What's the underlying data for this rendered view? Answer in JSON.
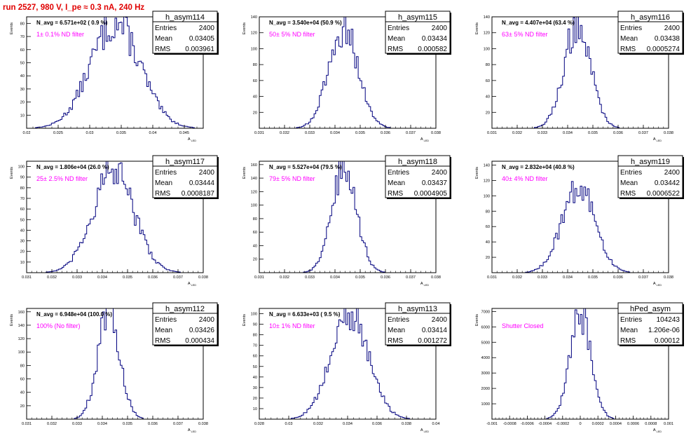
{
  "run_title": "run 2527,   980 V, I_pe ≈ 0.3 nA, 240 Hz",
  "colors": {
    "hist_line": "#00007f",
    "filter_label": "#ff00ff",
    "run_title": "#e00000",
    "frame": "#000000"
  },
  "chart_data": [
    {
      "type": "histogram",
      "name": "h_asym114",
      "ylabel": "Events",
      "xlabel": "A_LED",
      "xlim": [
        0.02,
        0.048
      ],
      "ylim": [
        0,
        85
      ],
      "xticks": [
        "0.02",
        "0.025",
        "0.03",
        "0.035",
        "0.04",
        "0.045"
      ],
      "xtick_values": [
        0.02,
        0.025,
        0.03,
        0.035,
        0.04,
        0.045
      ],
      "yticks": [
        10,
        20,
        30,
        40,
        50,
        60,
        70,
        80
      ],
      "stats": {
        "Entries": "2400",
        "Mean": "0.03405",
        "RMS": "0.003961"
      },
      "n_avg": "N_avg = 6.571e+02 ( 0.9 %)",
      "filter": "1± 0.1% ND filter",
      "mean": 0.03405,
      "rms": 0.003961,
      "peak": 80
    },
    {
      "type": "histogram",
      "name": "h_asym115",
      "ylabel": "Events",
      "xlabel": "A_LED",
      "xlim": [
        0.031,
        0.038
      ],
      "ylim": [
        0,
        140
      ],
      "xticks": [
        "0.031",
        "0.032",
        "0.033",
        "0.034",
        "0.035",
        "0.036",
        "0.037",
        "0.038"
      ],
      "xtick_values": [
        0.031,
        0.032,
        0.033,
        0.034,
        0.035,
        0.036,
        0.037,
        0.038
      ],
      "yticks": [
        20,
        40,
        60,
        80,
        100,
        120,
        140
      ],
      "stats": {
        "Entries": "2400",
        "Mean": "0.03434",
        "RMS": "0.000582"
      },
      "n_avg": "N_avg = 3.540e+04 (50.9 %)",
      "filter": "50± 5% ND filter",
      "mean": 0.03434,
      "rms": 0.000582,
      "peak": 125
    },
    {
      "type": "histogram",
      "name": "h_asym116",
      "ylabel": "Events",
      "xlabel": "A_LED",
      "xlim": [
        0.031,
        0.038
      ],
      "ylim": [
        0,
        140
      ],
      "xticks": [
        "0.031",
        "0.032",
        "0.033",
        "0.034",
        "0.035",
        "0.036",
        "0.037",
        "0.038"
      ],
      "xtick_values": [
        0.031,
        0.032,
        0.033,
        0.034,
        0.035,
        0.036,
        0.037,
        0.038
      ],
      "yticks": [
        20,
        40,
        60,
        80,
        100,
        120,
        140
      ],
      "stats": {
        "Entries": "2400",
        "Mean": "0.03438",
        "RMS": "0.0005274"
      },
      "n_avg": "N_avg = 4.407e+04 (63.4 %)",
      "filter": "63± 5% ND filter",
      "mean": 0.03438,
      "rms": 0.0005274,
      "peak": 130
    },
    {
      "type": "histogram",
      "name": "h_asym117",
      "ylabel": "Events",
      "xlabel": "A_LED",
      "xlim": [
        0.031,
        0.038
      ],
      "ylim": [
        0,
        105
      ],
      "xticks": [
        "0.031",
        "0.032",
        "0.033",
        "0.034",
        "0.035",
        "0.036",
        "0.037",
        "0.038"
      ],
      "xtick_values": [
        0.031,
        0.032,
        0.033,
        0.034,
        0.035,
        0.036,
        0.037,
        0.038
      ],
      "yticks": [
        10,
        20,
        30,
        40,
        50,
        60,
        70,
        80,
        90,
        100
      ],
      "stats": {
        "Entries": "2400",
        "Mean": "0.03444",
        "RMS": "0.0008187"
      },
      "n_avg": "N_avg = 1.806e+04 (26.0 %)",
      "filter": "25± 2.5% ND filter",
      "mean": 0.03444,
      "rms": 0.0008187,
      "peak": 95
    },
    {
      "type": "histogram",
      "name": "h_asym118",
      "ylabel": "Events",
      "xlabel": "A_LED",
      "xlim": [
        0.031,
        0.038
      ],
      "ylim": [
        0,
        165
      ],
      "xticks": [
        "0.031",
        "0.032",
        "0.033",
        "0.034",
        "0.035",
        "0.036",
        "0.037",
        "0.038"
      ],
      "xtick_values": [
        0.031,
        0.032,
        0.033,
        0.034,
        0.035,
        0.036,
        0.037,
        0.038
      ],
      "yticks": [
        20,
        40,
        60,
        80,
        100,
        120,
        140,
        160
      ],
      "stats": {
        "Entries": "2400",
        "Mean": "0.03437",
        "RMS": "0.0004905"
      },
      "n_avg": "N_avg = 5.527e+04 (79.5 %)",
      "filter": "79± 5% ND filter",
      "mean": 0.03437,
      "rms": 0.0004905,
      "peak": 155
    },
    {
      "type": "histogram",
      "name": "h_asym119",
      "ylabel": "Events",
      "xlabel": "A_LED",
      "xlim": [
        0.031,
        0.038
      ],
      "ylim": [
        0,
        145
      ],
      "xticks": [
        "0.031",
        "0.032",
        "0.033",
        "0.034",
        "0.035",
        "0.036",
        "0.037",
        "0.038"
      ],
      "xtick_values": [
        0.031,
        0.032,
        0.033,
        0.034,
        0.035,
        0.036,
        0.037,
        0.038
      ],
      "yticks": [
        20,
        40,
        60,
        80,
        100,
        120,
        140
      ],
      "stats": {
        "Entries": "2400",
        "Mean": "0.03442",
        "RMS": "0.0006522"
      },
      "n_avg": "N_avg = 2.832e+04 (40.8 %)",
      "filter": "40± 4% ND filter",
      "mean": 0.03442,
      "rms": 0.0006522,
      "peak": 112
    },
    {
      "type": "histogram",
      "name": "h_asym112",
      "ylabel": "Events",
      "xlabel": "A_LED",
      "xlim": [
        0.031,
        0.038
      ],
      "ylim": [
        0,
        165
      ],
      "xticks": [
        "0.031",
        "0.032",
        "0.033",
        "0.034",
        "0.035",
        "0.036",
        "0.037",
        "0.038"
      ],
      "xtick_values": [
        0.031,
        0.032,
        0.033,
        0.034,
        0.035,
        0.036,
        0.037,
        0.038
      ],
      "yticks": [
        20,
        40,
        60,
        80,
        100,
        120,
        140,
        160
      ],
      "stats": {
        "Entries": "2400",
        "Mean": "0.03426",
        "RMS": "0.000434"
      },
      "n_avg": "N_avg = 6.948e+04 (100.0 %)",
      "filter": "100% (No filter)",
      "mean": 0.03426,
      "rms": 0.000434,
      "peak": 160
    },
    {
      "type": "histogram",
      "name": "h_asym113",
      "ylabel": "Events",
      "xlabel": "A_LED",
      "xlim": [
        0.028,
        0.04
      ],
      "ylim": [
        0,
        105
      ],
      "xticks": [
        "0.028",
        "0.03",
        "0.032",
        "0.034",
        "0.036",
        "0.038",
        "0.04"
      ],
      "xtick_values": [
        0.028,
        0.03,
        0.032,
        0.034,
        0.036,
        0.038,
        0.04
      ],
      "yticks": [
        10,
        20,
        30,
        40,
        50,
        60,
        70,
        80,
        90,
        100
      ],
      "stats": {
        "Entries": "2400",
        "Mean": "0.03414",
        "RMS": "0.001272"
      },
      "n_avg": "N_avg = 6.633e+03 ( 9.5 %)",
      "filter": "10± 1% ND filter",
      "mean": 0.03414,
      "rms": 0.001272,
      "peak": 100
    },
    {
      "type": "histogram",
      "name": "hPed_asym",
      "ylabel": "Events",
      "xlabel": "A_LED",
      "xlim": [
        -0.001,
        0.001
      ],
      "ylim": [
        0,
        7200
      ],
      "xticks": [
        "-0.001",
        "-0.0008",
        "-0.0006",
        "-0.0004",
        "-0.0002",
        "0",
        "0.0002",
        "0.0004",
        "0.0006",
        "0.0008",
        "0.001"
      ],
      "xtick_values": [
        -0.001,
        -0.0008,
        -0.0006,
        -0.0004,
        -0.0002,
        0,
        0.0002,
        0.0004,
        0.0006,
        0.0008,
        0.001
      ],
      "yticks": [
        1000,
        2000,
        3000,
        4000,
        5000,
        6000,
        7000
      ],
      "stats": {
        "Entries": "104243",
        "Mean": "1.206e-06",
        "RMS": "0.00012"
      },
      "n_avg": "",
      "filter": "Shutter Closed",
      "mean": 1.2e-06,
      "rms": 0.00012,
      "peak": 6800
    }
  ]
}
